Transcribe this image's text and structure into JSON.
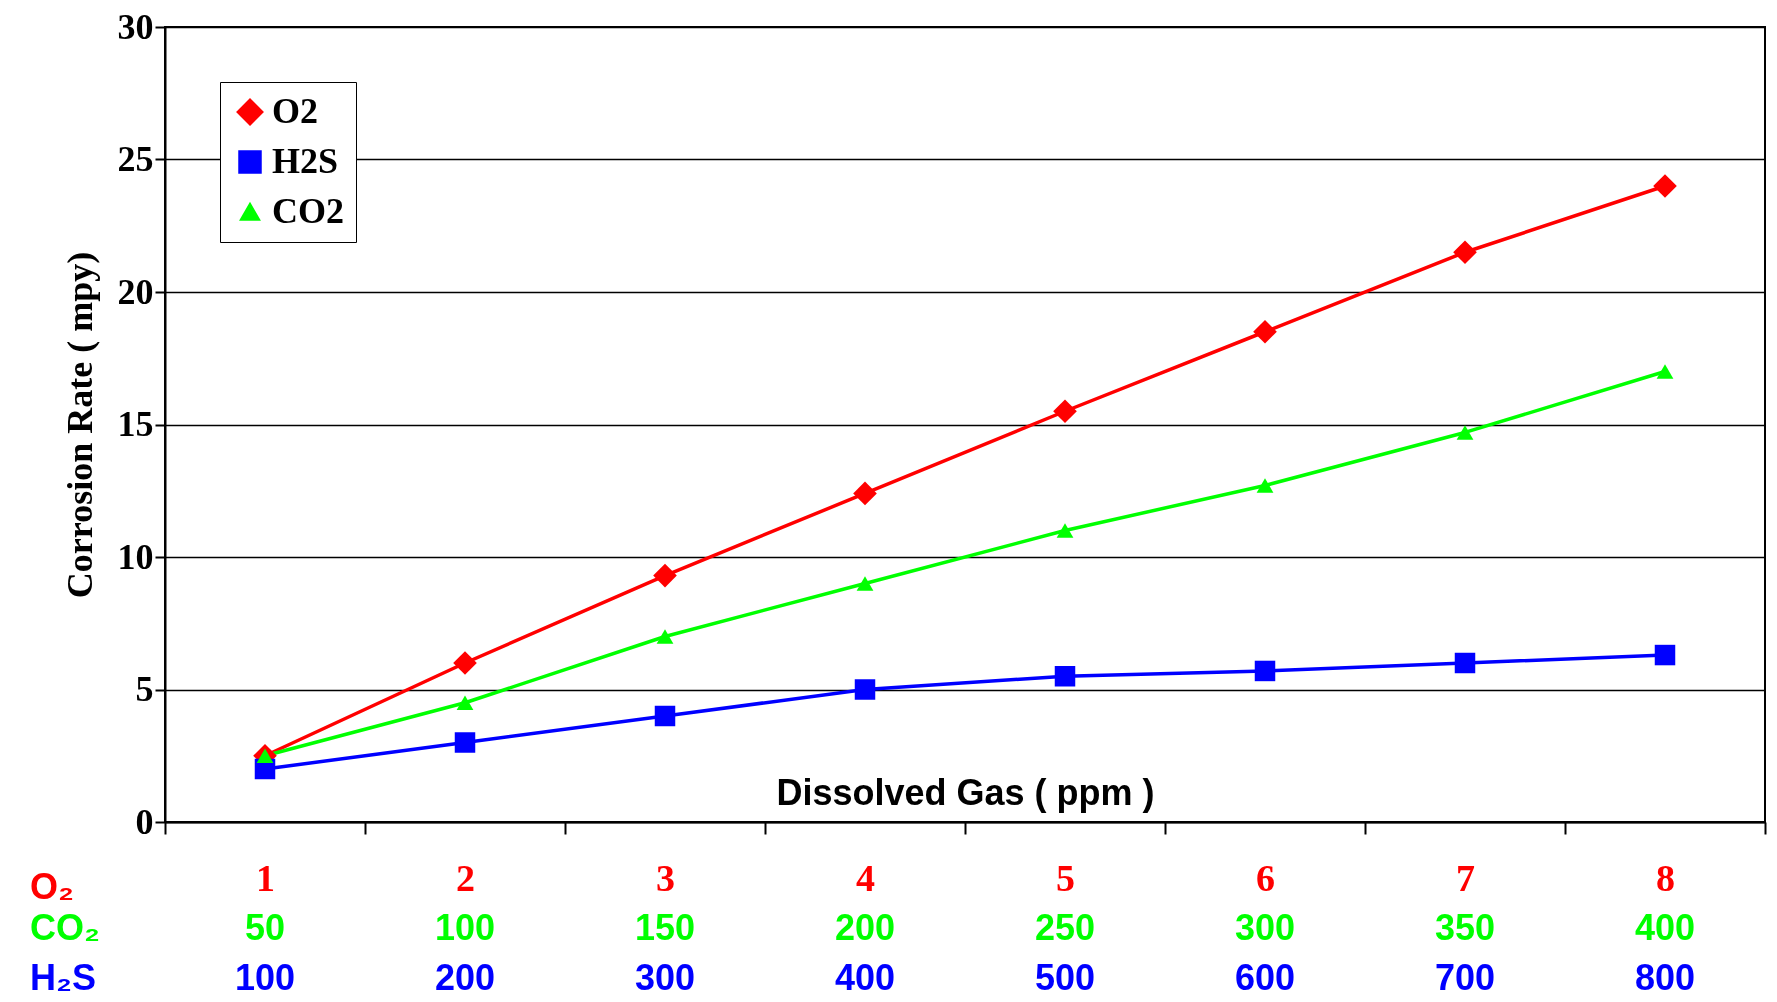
{
  "chart_data": {
    "type": "line",
    "xlabel": "Dissolved Gas ( ppm )",
    "ylabel": "Corrosion Rate ( mpy)",
    "categories": [
      "1",
      "2",
      "3",
      "4",
      "5",
      "6",
      "7",
      "8"
    ],
    "ylim": [
      0,
      30
    ],
    "yticks": [
      0,
      5,
      10,
      15,
      20,
      25,
      30
    ],
    "grid": "y",
    "legend": "top left",
    "series": [
      {
        "name": "O2",
        "color": "#ff0000",
        "marker": "diamond",
        "values": [
          2.5,
          6.0,
          9.3,
          12.4,
          15.5,
          18.5,
          21.5,
          24.0
        ]
      },
      {
        "name": "H2S",
        "color": "#0000ff",
        "marker": "square",
        "values": [
          2.0,
          3.0,
          4.0,
          5.0,
          5.5,
          5.7,
          6.0,
          6.3
        ]
      },
      {
        "name": "CO2",
        "color": "#00ff00",
        "marker": "triangle",
        "values": [
          2.5,
          4.5,
          7.0,
          9.0,
          11.0,
          12.7,
          14.7,
          17.0
        ]
      }
    ],
    "annotations": [
      "O₂",
      "CO₂",
      "50",
      "100",
      "150",
      "200",
      "250",
      "300",
      "350",
      "400",
      "H₂S",
      "100",
      "200",
      "300",
      "400",
      "500",
      "600",
      "700",
      "800"
    ]
  }
}
